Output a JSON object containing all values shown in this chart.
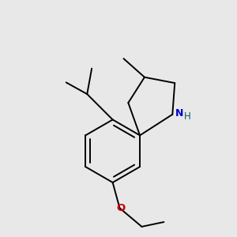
{
  "background_color": "#e8e8e8",
  "bond_color": "#000000",
  "N_color": "#0000cc",
  "O_color": "#cc0000",
  "H_color": "#006060",
  "bond_width": 1.4,
  "figsize": [
    3.0,
    3.0
  ],
  "dpi": 100,
  "xlim": [
    -0.6,
    1.0
  ],
  "ylim": [
    -1.1,
    0.9
  ]
}
